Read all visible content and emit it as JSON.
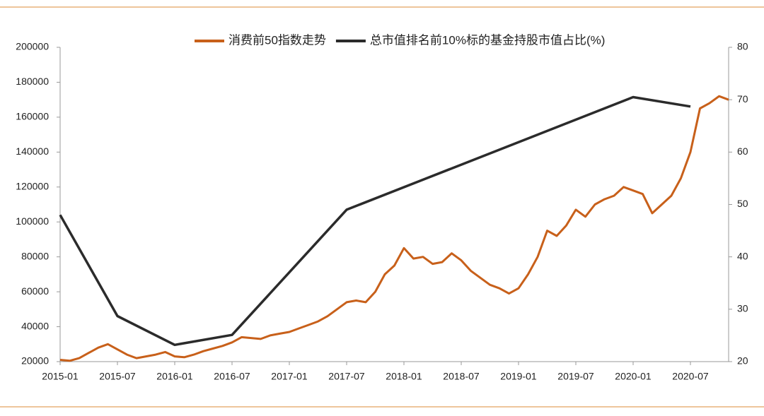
{
  "chart_data": {
    "type": "line",
    "xlim": [
      "2015-01",
      "2020-11"
    ],
    "xticks": [
      "2015-01",
      "2015-07",
      "2016-01",
      "2016-07",
      "2017-01",
      "2017-07",
      "2018-01",
      "2018-07",
      "2019-01",
      "2019-07",
      "2020-01",
      "2020-07"
    ],
    "ylim": [
      20000,
      200000
    ],
    "yticks": [
      20000,
      40000,
      60000,
      80000,
      100000,
      120000,
      140000,
      160000,
      180000,
      200000
    ],
    "y2lim": [
      20,
      80
    ],
    "y2ticks": [
      20,
      30,
      40,
      50,
      60,
      70,
      80
    ],
    "legend": "top",
    "series": [
      {
        "name": "消费前50指数走势",
        "color": "#c8601a",
        "x": [
          "2015-01",
          "2015-02",
          "2015-03",
          "2015-04",
          "2015-05",
          "2015-06",
          "2015-07",
          "2015-08",
          "2015-09",
          "2015-10",
          "2015-11",
          "2015-12",
          "2016-01",
          "2016-02",
          "2016-03",
          "2016-04",
          "2016-05",
          "2016-06",
          "2016-07",
          "2016-08",
          "2016-09",
          "2016-10",
          "2016-11",
          "2016-12",
          "2017-01",
          "2017-02",
          "2017-03",
          "2017-04",
          "2017-05",
          "2017-06",
          "2017-07",
          "2017-08",
          "2017-09",
          "2017-10",
          "2017-11",
          "2017-12",
          "2018-01",
          "2018-02",
          "2018-03",
          "2018-04",
          "2018-05",
          "2018-06",
          "2018-07",
          "2018-08",
          "2018-09",
          "2018-10",
          "2018-11",
          "2018-12",
          "2019-01",
          "2019-02",
          "2019-03",
          "2019-04",
          "2019-05",
          "2019-06",
          "2019-07",
          "2019-08",
          "2019-09",
          "2019-10",
          "2019-11",
          "2019-12",
          "2020-01",
          "2020-02",
          "2020-03",
          "2020-04",
          "2020-05",
          "2020-06",
          "2020-07",
          "2020-08",
          "2020-09",
          "2020-10",
          "2020-11"
        ],
        "values": [
          21000,
          20500,
          22000,
          25000,
          28000,
          30000,
          27000,
          24000,
          22000,
          23000,
          24000,
          25500,
          23000,
          22500,
          24000,
          26000,
          27500,
          29000,
          31000,
          34000,
          33500,
          33000,
          35000,
          36000,
          37000,
          39000,
          41000,
          43000,
          46000,
          50000,
          54000,
          55000,
          54000,
          60000,
          70000,
          75000,
          85000,
          79000,
          80000,
          76000,
          77000,
          82000,
          78000,
          72000,
          68000,
          64000,
          62000,
          59000,
          62000,
          70000,
          80000,
          95000,
          92000,
          98000,
          107000,
          103000,
          110000,
          113000,
          115000,
          120000,
          118000,
          116000,
          105000,
          110000,
          115000,
          125000,
          140000,
          165000,
          168000,
          172000,
          170000
        ]
      },
      {
        "name": "总市值排名前10%标的基金持股市值占比(%)",
        "color": "#2b2b2b",
        "axis": "y2",
        "x": [
          "2015-01",
          "2015-07",
          "2016-01",
          "2016-07",
          "2017-07",
          "2020-01",
          "2020-07"
        ],
        "values": [
          48,
          28.7,
          23.2,
          25.1,
          49,
          70.5,
          68.7
        ]
      }
    ]
  }
}
